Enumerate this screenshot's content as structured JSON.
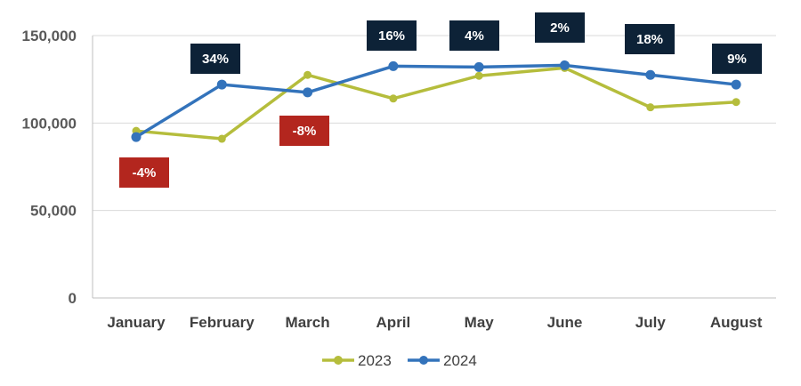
{
  "chart_data": {
    "type": "line",
    "categories": [
      "January",
      "February",
      "March",
      "April",
      "May",
      "June",
      "July",
      "August"
    ],
    "series": [
      {
        "name": "2023",
        "color": "#B5BD3C",
        "values": [
          95500,
          91000,
          127500,
          114000,
          127000,
          131500,
          109000,
          112000
        ]
      },
      {
        "name": "2024",
        "color": "#3373BB",
        "values": [
          92000,
          122000,
          117500,
          132500,
          132000,
          133000,
          127500,
          122000
        ]
      }
    ],
    "ylim": [
      0,
      150000
    ],
    "yticks": [
      0,
      50000,
      100000,
      150000
    ],
    "ytick_labels": [
      "0",
      "50,000",
      "100,000",
      "150,000"
    ],
    "grid": true,
    "legend_position": "bottom",
    "annotations": [
      {
        "category": "January",
        "text": "-4%",
        "color": "#B3261E"
      },
      {
        "category": "February",
        "text": "34%",
        "color": "#0D2237"
      },
      {
        "category": "March",
        "text": "-8%",
        "color": "#B3261E"
      },
      {
        "category": "April",
        "text": "16%",
        "color": "#0D2237"
      },
      {
        "category": "May",
        "text": "4%",
        "color": "#0D2237"
      },
      {
        "category": "June",
        "text": "2%",
        "color": "#0D2237"
      },
      {
        "category": "July",
        "text": "18%",
        "color": "#0D2237"
      },
      {
        "category": "August",
        "text": "9%",
        "color": "#0D2237"
      }
    ]
  }
}
